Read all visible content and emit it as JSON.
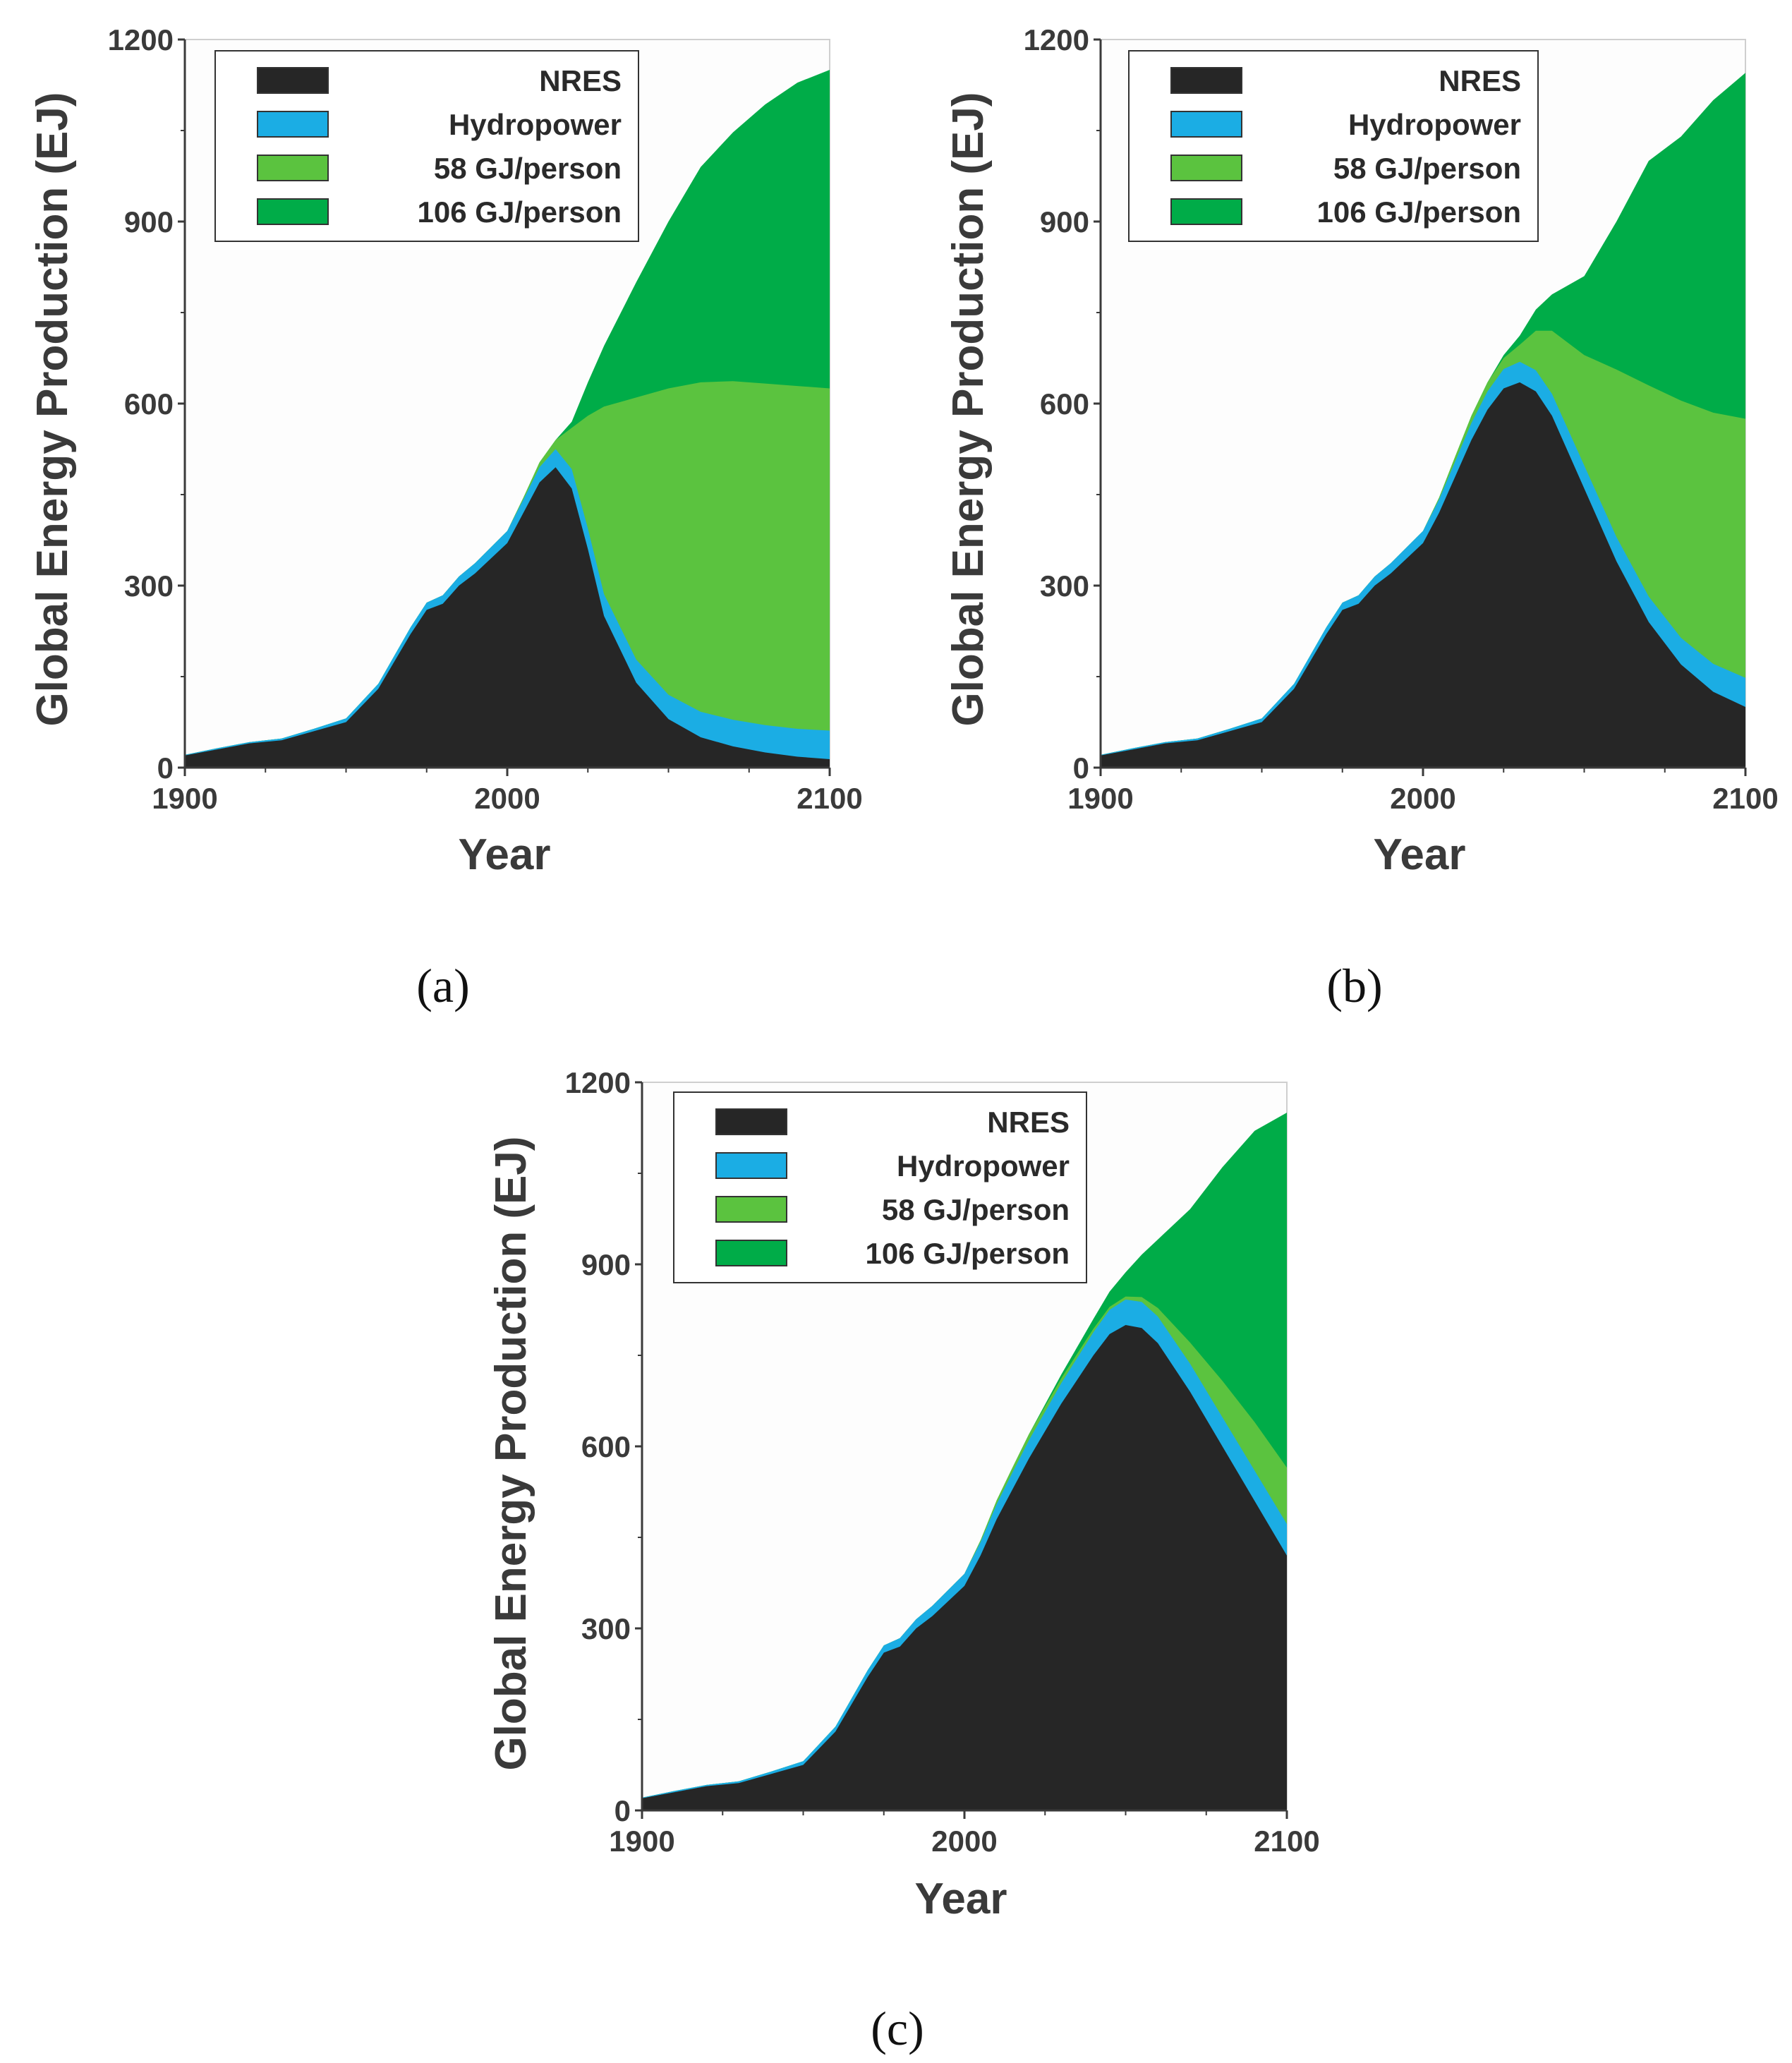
{
  "colors": {
    "nres": "#262626",
    "hydropower": "#1BADE4",
    "gj58": "#5BC33F",
    "gj106": "#00AC48",
    "axis": "#3a3a3a",
    "plot_bg": "#fdfdfd"
  },
  "chart_data": [
    {
      "panel": "a",
      "type": "area",
      "stacked": true,
      "xlabel": "Year",
      "ylabel": "Global Energy Production (EJ)",
      "xlim": [
        1900,
        2100
      ],
      "ylim": [
        0,
        1200
      ],
      "xticks": [
        "1900",
        "2000",
        "2100"
      ],
      "yticks": [
        "0",
        "300",
        "600",
        "900",
        "1200"
      ],
      "legend_position": "top-left",
      "legend": [
        "NRES",
        "Hydropower",
        "58 GJ/person",
        "106 GJ/person"
      ],
      "panel_label": "(a)",
      "series": [
        {
          "name": "NRES",
          "x": [
            1900,
            1910,
            1920,
            1930,
            1940,
            1950,
            1960,
            1970,
            1975,
            1980,
            1985,
            1990,
            2000,
            2005,
            2010,
            2015,
            2020,
            2025,
            2030,
            2040,
            2050,
            2060,
            2070,
            2080,
            2090,
            2100
          ],
          "values": [
            20,
            30,
            40,
            45,
            60,
            75,
            130,
            220,
            260,
            270,
            300,
            320,
            370,
            420,
            470,
            495,
            460,
            360,
            250,
            140,
            80,
            50,
            35,
            25,
            18,
            14
          ]
        },
        {
          "name": "Hydropower",
          "x": [
            1900,
            1910,
            1920,
            1930,
            1940,
            1950,
            1960,
            1970,
            1975,
            1980,
            1985,
            1990,
            2000,
            2005,
            2010,
            2015,
            2020,
            2025,
            2030,
            2040,
            2050,
            2060,
            2070,
            2080,
            2090,
            2100
          ],
          "values": [
            1,
            2,
            2,
            3,
            4,
            6,
            8,
            11,
            12,
            14,
            15,
            17,
            20,
            22,
            25,
            30,
            32,
            34,
            36,
            38,
            40,
            42,
            44,
            45,
            46,
            47
          ]
        },
        {
          "name": "58 GJ/person",
          "x": [
            1900,
            1910,
            1920,
            1930,
            1940,
            1950,
            1960,
            1970,
            1975,
            1980,
            1985,
            1990,
            2000,
            2005,
            2010,
            2015,
            2020,
            2025,
            2030,
            2040,
            2050,
            2060,
            2070,
            2080,
            2090,
            2100
          ],
          "values": [
            0,
            0,
            0,
            0,
            0,
            0,
            0,
            0,
            0,
            0,
            0,
            0,
            0,
            3,
            8,
            15,
            68,
            186,
            309,
            432,
            505,
            543,
            558,
            563,
            565,
            564
          ]
        },
        {
          "name": "106 GJ/person",
          "x": [
            1900,
            1910,
            1920,
            1930,
            1940,
            1950,
            1960,
            1970,
            1975,
            1980,
            1985,
            1990,
            2000,
            2005,
            2010,
            2015,
            2020,
            2025,
            2030,
            2040,
            2050,
            2060,
            2070,
            2080,
            2090,
            2100
          ],
          "values": [
            0,
            0,
            0,
            0,
            0,
            0,
            0,
            0,
            0,
            0,
            0,
            0,
            0,
            0,
            0,
            0,
            10,
            55,
            100,
            190,
            275,
            355,
            410,
            460,
            500,
            525
          ]
        }
      ]
    },
    {
      "panel": "b",
      "type": "area",
      "stacked": true,
      "xlabel": "Year",
      "ylabel": "Global Energy Production (EJ)",
      "xlim": [
        1900,
        2100
      ],
      "ylim": [
        0,
        1200
      ],
      "xticks": [
        "1900",
        "2000",
        "2100"
      ],
      "yticks": [
        "0",
        "300",
        "600",
        "900",
        "1200"
      ],
      "legend_position": "top-left",
      "legend": [
        "NRES",
        "Hydropower",
        "58 GJ/person",
        "106 GJ/person"
      ],
      "panel_label": "(b)",
      "series": [
        {
          "name": "NRES",
          "x": [
            1900,
            1910,
            1920,
            1930,
            1940,
            1950,
            1960,
            1970,
            1975,
            1980,
            1985,
            1990,
            2000,
            2005,
            2010,
            2015,
            2020,
            2025,
            2030,
            2035,
            2040,
            2050,
            2060,
            2070,
            2080,
            2090,
            2100
          ],
          "values": [
            20,
            30,
            40,
            45,
            60,
            75,
            130,
            220,
            260,
            270,
            300,
            320,
            370,
            420,
            480,
            540,
            590,
            625,
            635,
            620,
            580,
            460,
            340,
            240,
            170,
            125,
            100
          ]
        },
        {
          "name": "Hydropower",
          "x": [
            1900,
            1910,
            1920,
            1930,
            1940,
            1950,
            1960,
            1970,
            1975,
            1980,
            1985,
            1990,
            2000,
            2005,
            2010,
            2015,
            2020,
            2025,
            2030,
            2035,
            2040,
            2050,
            2060,
            2070,
            2080,
            2090,
            2100
          ],
          "values": [
            1,
            2,
            2,
            3,
            4,
            6,
            8,
            11,
            12,
            14,
            15,
            17,
            20,
            22,
            25,
            28,
            30,
            32,
            34,
            35,
            36,
            38,
            40,
            42,
            44,
            46,
            48
          ]
        },
        {
          "name": "58 GJ/person",
          "x": [
            1900,
            1910,
            1920,
            1930,
            1940,
            1950,
            1960,
            1970,
            1975,
            1980,
            1985,
            1990,
            2000,
            2005,
            2010,
            2015,
            2020,
            2025,
            2030,
            2035,
            2040,
            2050,
            2060,
            2070,
            2080,
            2090,
            2100
          ],
          "values": [
            0,
            0,
            0,
            0,
            0,
            0,
            0,
            0,
            0,
            0,
            0,
            0,
            0,
            3,
            8,
            12,
            15,
            18,
            28,
            65,
            104,
            182,
            276,
            348,
            391,
            414,
            427
          ]
        },
        {
          "name": "106 GJ/person",
          "x": [
            1900,
            1910,
            1920,
            1930,
            1940,
            1950,
            1960,
            1970,
            1975,
            1980,
            1985,
            1990,
            2000,
            2005,
            2010,
            2015,
            2020,
            2025,
            2030,
            2035,
            2040,
            2050,
            2060,
            2070,
            2080,
            2090,
            2100
          ],
          "values": [
            0,
            0,
            0,
            0,
            0,
            0,
            0,
            0,
            0,
            0,
            0,
            0,
            0,
            0,
            0,
            0,
            0,
            5,
            15,
            35,
            60,
            130,
            244,
            370,
            435,
            515,
            570
          ]
        }
      ]
    },
    {
      "panel": "c",
      "type": "area",
      "stacked": true,
      "xlabel": "Year",
      "ylabel": "Global Energy Production (EJ)",
      "xlim": [
        1900,
        2100
      ],
      "ylim": [
        0,
        1200
      ],
      "xticks": [
        "1900",
        "2000",
        "2100"
      ],
      "yticks": [
        "0",
        "300",
        "600",
        "900",
        "1200"
      ],
      "legend_position": "top-left",
      "legend": [
        "NRES",
        "Hydropower",
        "58 GJ/person",
        "106 GJ/person"
      ],
      "panel_label": "(c)",
      "series": [
        {
          "name": "NRES",
          "x": [
            1900,
            1910,
            1920,
            1930,
            1940,
            1950,
            1960,
            1970,
            1975,
            1980,
            1985,
            1990,
            2000,
            2005,
            2010,
            2015,
            2020,
            2030,
            2040,
            2045,
            2050,
            2055,
            2060,
            2070,
            2080,
            2090,
            2100
          ],
          "values": [
            20,
            30,
            40,
            45,
            60,
            75,
            130,
            220,
            260,
            270,
            300,
            320,
            370,
            420,
            480,
            530,
            580,
            670,
            750,
            785,
            800,
            795,
            770,
            690,
            600,
            510,
            420
          ]
        },
        {
          "name": "Hydropower",
          "x": [
            1900,
            1910,
            1920,
            1930,
            1940,
            1950,
            1960,
            1970,
            1975,
            1980,
            1985,
            1990,
            2000,
            2005,
            2010,
            2015,
            2020,
            2030,
            2040,
            2045,
            2050,
            2055,
            2060,
            2070,
            2080,
            2090,
            2100
          ],
          "values": [
            1,
            2,
            2,
            3,
            4,
            6,
            8,
            11,
            12,
            14,
            15,
            17,
            20,
            22,
            25,
            28,
            30,
            34,
            38,
            40,
            42,
            43,
            44,
            46,
            48,
            50,
            52
          ]
        },
        {
          "name": "58 GJ/person",
          "x": [
            1900,
            1910,
            1920,
            1930,
            1940,
            1950,
            1960,
            1970,
            1975,
            1980,
            1985,
            1990,
            2000,
            2005,
            2010,
            2015,
            2020,
            2030,
            2040,
            2045,
            2050,
            2055,
            2060,
            2070,
            2080,
            2090,
            2100
          ],
          "values": [
            0,
            0,
            0,
            0,
            0,
            0,
            0,
            0,
            0,
            0,
            0,
            0,
            0,
            3,
            6,
            8,
            10,
            8,
            6,
            5,
            5,
            8,
            14,
            35,
            60,
            80,
            93
          ]
        },
        {
          "name": "106 GJ/person",
          "x": [
            1900,
            1910,
            1920,
            1930,
            1940,
            1950,
            1960,
            1970,
            1975,
            1980,
            1985,
            1990,
            2000,
            2005,
            2010,
            2015,
            2020,
            2030,
            2040,
            2045,
            2050,
            2055,
            2060,
            2070,
            2080,
            2090,
            2100
          ],
          "values": [
            0,
            0,
            0,
            0,
            0,
            0,
            0,
            0,
            0,
            0,
            0,
            0,
            0,
            0,
            0,
            0,
            0,
            6,
            16,
            25,
            40,
            70,
            113,
            220,
            352,
            480,
            585
          ]
        }
      ]
    }
  ]
}
